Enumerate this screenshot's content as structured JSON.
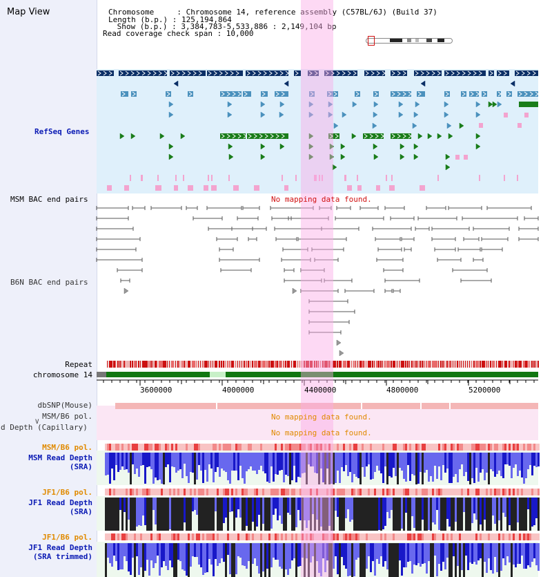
{
  "title": "Map View",
  "info": {
    "chromosome": "Chromosome     : Chromosome 14, reference assembly (C57BL/6J) (Build 37)",
    "length": "Length (b.p.) : 125,194,864",
    "show": " Show (b.p.) : 3,384,783-5,533,886 : 2,149,104 bp",
    "span": "Read coverage check span : 10,000"
  },
  "tracks": {
    "refseq": "RefSeq Genes",
    "msm_bac": "MSM BAC end pairs",
    "msm_bac_msg": "No mapping data found.",
    "b6n_bac": "B6N BAC end pairs",
    "repeat": "Repeat",
    "chromosome": "chromosome 14",
    "dbsnp": "dbSNP(Mouse)",
    "msm_b6_pol_top": "MSM/B6 pol.",
    "read_depth_cap": "d Depth (Capillary)",
    "read_depth_cap_sup": "V",
    "msm_b6_pol_msg1": "No mapping data found.",
    "msm_b6_pol_msg2": "No mapping data found.",
    "msm_b6_pol": "MSM/B6 pol.",
    "msm_read_depth": "MSM Read Depth",
    "msm_read_depth_sub": "(SRA)",
    "jf1_b6_pol": "JF1/B6 pol.",
    "jf1_read_depth": "JF1 Read Depth",
    "jf1_read_depth_sub": "(SRA)",
    "jf1_b6_pol2": "JF1/B6 pol.",
    "jf1_read_depth2": "JF1 Read Depth",
    "jf1_read_depth2_sub": "(SRA trimmed)"
  },
  "axis": {
    "ticks": [
      "3600000",
      "4000000",
      "4400000",
      "4800000",
      "5200000"
    ]
  },
  "colors": {
    "gene_dark": "#0b2f66",
    "gene_mid": "#4b91bd",
    "gene_green": "#1a7d1a",
    "gene_pink": "#f3a4cf",
    "repeat_red": "#cc1010",
    "chrom_green": "#117711",
    "snp_pink": "#f4b6b6",
    "depth_blue": "#3a3adf",
    "depth_black": "#222222"
  }
}
